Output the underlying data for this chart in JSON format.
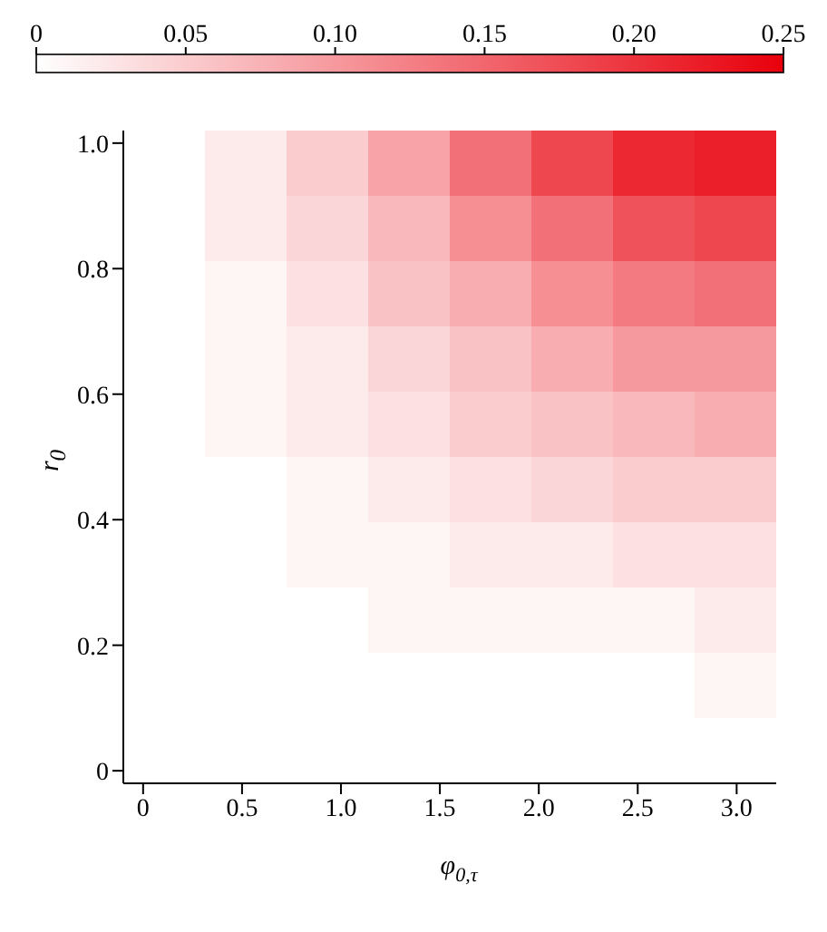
{
  "chart_data": {
    "type": "heatmap",
    "xlabel": "φ$_{0,τ}$",
    "ylabel": "r$_{0}$",
    "cells": [
      [
        0,
        0.02,
        0.05,
        0.09,
        0.14,
        0.18,
        0.21,
        0.22
      ],
      [
        0,
        0.02,
        0.04,
        0.07,
        0.11,
        0.14,
        0.17,
        0.18
      ],
      [
        0,
        0.01,
        0.03,
        0.06,
        0.08,
        0.11,
        0.13,
        0.14
      ],
      [
        0,
        0.01,
        0.02,
        0.04,
        0.06,
        0.08,
        0.1,
        0.1
      ],
      [
        0,
        0.01,
        0.02,
        0.03,
        0.05,
        0.06,
        0.07,
        0.08
      ],
      [
        0,
        0,
        0.01,
        0.02,
        0.03,
        0.04,
        0.05,
        0.05
      ],
      [
        0,
        0,
        0.01,
        0.01,
        0.02,
        0.02,
        0.03,
        0.03
      ],
      [
        0,
        0,
        0,
        0.01,
        0.01,
        0.01,
        0.01,
        0.02
      ],
      [
        0,
        0,
        0,
        0,
        0,
        0,
        0,
        0.01
      ],
      [
        0,
        0,
        0,
        0,
        0,
        0,
        0,
        0
      ]
    ],
    "xlim": [
      -0.1,
      3.2
    ],
    "xticks": [
      0,
      0.5,
      {
        "value": 1,
        "label": "1.0"
      },
      1.5,
      {
        "value": 2,
        "label": "2.0"
      },
      2.5,
      {
        "value": 3,
        "label": "3.0"
      }
    ],
    "ylim": [
      -0.02,
      1.02
    ],
    "yticks": [
      0,
      0.2,
      0.4,
      0.6,
      0.8,
      {
        "value": 1,
        "label": "1.0"
      }
    ],
    "clim": [
      0,
      0.25
    ],
    "cticks": [
      0,
      0.05,
      {
        "value": 0.1,
        "label": "0.10"
      },
      0.15,
      {
        "value": 0.2,
        "label": "0.20"
      },
      0.25
    ],
    "color": "#e8000c"
  }
}
